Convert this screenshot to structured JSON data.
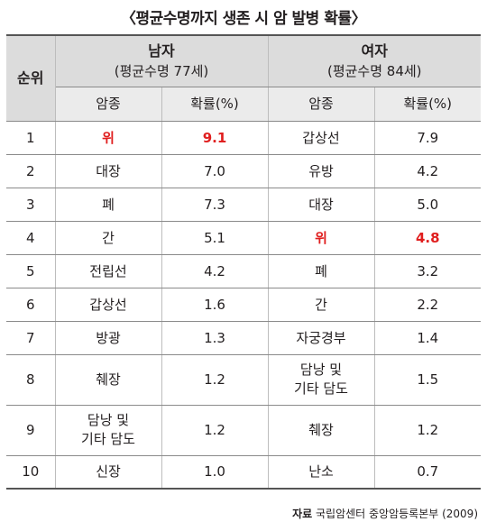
{
  "title": "〈평균수명까지 생존 시 암 발병 확률〉",
  "header": {
    "rank": "순위",
    "male_title": "남자",
    "male_sub": "(평균수명 77세)",
    "female_title": "여자",
    "female_sub": "(평균수명 84세)",
    "cancer": "암종",
    "prob": "확률(%)"
  },
  "rows": [
    {
      "rank": "1",
      "m_cancer": "위",
      "m_prob": "9.1",
      "f_cancer": "갑상선",
      "f_prob": "7.9"
    },
    {
      "rank": "2",
      "m_cancer": "대장",
      "m_prob": "7.0",
      "f_cancer": "유방",
      "f_prob": "4.2"
    },
    {
      "rank": "3",
      "m_cancer": "폐",
      "m_prob": "7.3",
      "f_cancer": "대장",
      "f_prob": "5.0"
    },
    {
      "rank": "4",
      "m_cancer": "간",
      "m_prob": "5.1",
      "f_cancer": "위",
      "f_prob": "4.8"
    },
    {
      "rank": "5",
      "m_cancer": "전립선",
      "m_prob": "4.2",
      "f_cancer": "폐",
      "f_prob": "3.2"
    },
    {
      "rank": "6",
      "m_cancer": "갑상선",
      "m_prob": "1.6",
      "f_cancer": "간",
      "f_prob": "2.2"
    },
    {
      "rank": "7",
      "m_cancer": "방광",
      "m_prob": "1.3",
      "f_cancer": "자궁경부",
      "f_prob": "1.4"
    },
    {
      "rank": "8",
      "m_cancer": "췌장",
      "m_prob": "1.2",
      "f_cancer_l1": "담낭 및",
      "f_cancer_l2": "기타 담도",
      "f_prob": "1.5"
    },
    {
      "rank": "9",
      "m_cancer_l1": "담낭 및",
      "m_cancer_l2": "기타 담도",
      "m_prob": "1.2",
      "f_cancer": "췌장",
      "f_prob": "1.2"
    },
    {
      "rank": "10",
      "m_cancer": "신장",
      "m_prob": "1.0",
      "f_cancer": "난소",
      "f_prob": "0.7"
    }
  ],
  "source": {
    "label": "자료",
    "text": "국립암센터 중앙암등록본부 (2009)"
  },
  "colors": {
    "highlight": "#e01e1e",
    "header_bg": "#dcdcdc",
    "subheader_bg": "#ebebeb"
  }
}
